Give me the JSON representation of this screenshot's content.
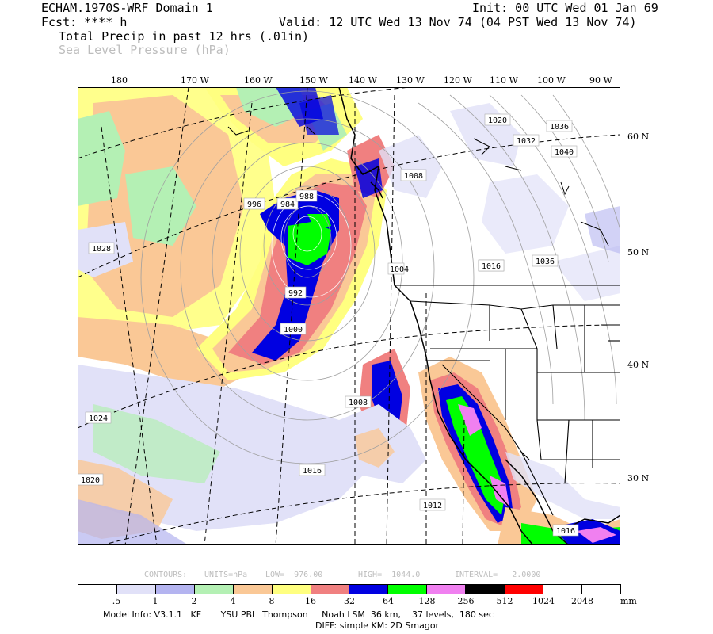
{
  "header": {
    "model": "ECHAM.1970S-WRF Domain 1",
    "init": "Init: 00 UTC Wed 01 Jan 69",
    "fcst": "Fcst: **** h",
    "valid": "Valid: 12 UTC Wed 13 Nov 74 (04 PST Wed 13 Nov 74)",
    "field1": "Total Precip in past 12 hrs (.01in)",
    "field2": "Sea Level Pressure (hPa)"
  },
  "longitude_labels": [
    "180",
    "170 W",
    "160 W",
    "150 W",
    "140 W",
    "130 W",
    "120 W",
    "110 W",
    "100 W",
    "90 W"
  ],
  "latitude_labels": [
    "60 N",
    "50 N",
    "40 N",
    "30 N"
  ],
  "pressure_labels": [
    "984",
    "992",
    "1000",
    "988",
    "996",
    "1008",
    "1016",
    "1012",
    "1020",
    "1024",
    "1028",
    "1032",
    "1036",
    "1040",
    "1004"
  ],
  "contour_info": {
    "contours": "CONTOURS:",
    "units": "UNITS=hPa",
    "low": "LOW=  976.00",
    "high": "HIGH=  1044.0",
    "interval": "INTERVAL=   2.0000"
  },
  "legend": {
    "ticks": [
      ".5",
      "1",
      "2",
      "4",
      "8",
      "16",
      "32",
      "64",
      "128",
      "256",
      "512",
      "1024",
      "2048"
    ],
    "unit": "mm",
    "colors": [
      "#ffffff",
      "#e1e1f8",
      "#b4b4f0",
      "#b4f0b4",
      "#fac896",
      "#ffff80",
      "#f08080",
      "#0000e1",
      "#00ff00",
      "#f080f0",
      "#000000",
      "#ff0000",
      "#ffffff",
      "#ffffff"
    ]
  },
  "footer": {
    "line1": "Model Info: V3.1.1   KF       YSU PBL  Thompson     Noah LSM  36 km,    37 levels,  180 sec",
    "line2": "DIFF: simple KM: 2D Smagor"
  }
}
